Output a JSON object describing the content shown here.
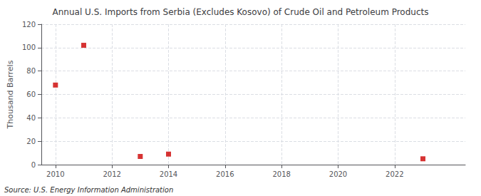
{
  "chart_data": {
    "type": "scatter",
    "title": "Annual U.S. Imports from Serbia (Excludes Kosovo) of Crude Oil and Petroleum Products",
    "ylabel": "Thousand Barrels",
    "source": "Source: U.S. Energy Information Administration",
    "x": [
      2010,
      2011,
      2013,
      2014,
      2023
    ],
    "values": [
      68,
      102,
      7,
      9,
      5
    ],
    "color": "#cc0000",
    "marker": "square",
    "xlim": [
      2009.5,
      2024.5
    ],
    "xticks": [
      2010,
      2012,
      2014,
      2016,
      2018,
      2020,
      2022
    ],
    "ylim": [
      0,
      120
    ],
    "yticks": [
      0,
      20,
      40,
      60,
      80,
      100,
      120
    ],
    "grid": true
  }
}
